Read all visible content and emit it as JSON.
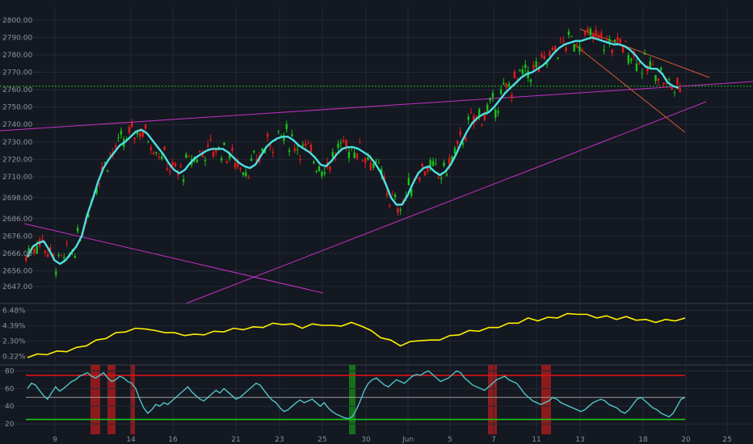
{
  "chart_data": [
    {
      "type": "candlestick",
      "y_ticks": [
        "2800.00",
        "2790.00",
        "2780.00",
        "2770.00",
        "2760.00",
        "2750.00",
        "2740.00",
        "2730.00",
        "2720.00",
        "2710.00",
        "2698.00",
        "2686.00",
        "2676.00",
        "2666.00",
        "2656.00",
        "2647.00"
      ],
      "ylim": [
        2640,
        2805
      ],
      "reference_line": 2762,
      "series": [
        {
          "values": [
            2664,
            2670,
            2672,
            2673,
            2668,
            2662,
            2660,
            2662,
            2666,
            2670,
            2676,
            2688,
            2697,
            2707,
            2715,
            2720,
            2724,
            2728,
            2730,
            2733,
            2736,
            2737,
            2735,
            2731,
            2727,
            2723,
            2718,
            2714,
            2712,
            2714,
            2718,
            2721,
            2723,
            2725,
            2726,
            2726,
            2726,
            2724,
            2721,
            2718,
            2716,
            2715,
            2717,
            2722,
            2727,
            2730,
            2732,
            2733,
            2733,
            2731,
            2728,
            2726,
            2724,
            2721,
            2717,
            2716,
            2719,
            2723,
            2726,
            2727,
            2727,
            2726,
            2724,
            2722,
            2718,
            2713,
            2706,
            2698,
            2694,
            2694,
            2699,
            2706,
            2712,
            2715,
            2716,
            2713,
            2711,
            2713,
            2717,
            2723,
            2730,
            2736,
            2741,
            2744,
            2746,
            2747,
            2750,
            2754,
            2758,
            2761,
            2764,
            2767,
            2769,
            2770,
            2772,
            2774,
            2777,
            2781,
            2784,
            2786,
            2787,
            2788,
            2788,
            2789,
            2790,
            2789,
            2788,
            2787,
            2786,
            2786,
            2785,
            2783,
            2780,
            2776,
            2773,
            2772,
            2772,
            2769,
            2764,
            2762,
            2761
          ]
        },
        {
          "name": "pivot_a",
          "values": [
            2738,
            2746
          ],
          "x_days": [
            0,
            31
          ]
        },
        {
          "name": "pivot_b",
          "values": [
            2678,
            2652
          ],
          "x_days": [
            0,
            13
          ]
        }
      ]
    },
    {
      "type": "line",
      "y_ticks": [
        "6.48%",
        "4.39%",
        "2.30%",
        "0.22%"
      ],
      "ylim": [
        -0.5,
        7.2
      ],
      "series": [
        {
          "values": [
            0.2,
            0.4,
            0.6,
            0.8,
            1.0,
            1.3,
            1.8,
            2.3,
            2.8,
            3.3,
            3.7,
            3.9,
            4.1,
            3.6,
            3.6,
            3.3,
            3.2,
            3.1,
            3.3,
            3.5,
            3.7,
            3.9,
            4.0,
            4.1,
            4.3,
            4.6,
            4.7,
            4.5,
            4.2,
            4.5,
            4.6,
            4.3,
            4.5,
            4.7,
            4.5,
            3.6,
            2.9,
            2.3,
            1.8,
            2.1,
            2.5,
            2.3,
            2.6,
            2.9,
            3.3,
            3.6,
            3.8,
            4.0,
            4.3,
            4.6,
            4.9,
            5.3,
            5.2,
            5.4,
            5.6,
            5.9,
            6.1,
            5.8,
            5.6,
            5.6,
            5.4,
            5.5,
            5.3,
            5.1,
            5.0,
            5.1,
            5.2,
            5.3
          ]
        }
      ]
    },
    {
      "type": "line",
      "y_ticks": [
        "80",
        "60",
        "40",
        "20"
      ],
      "ylim": [
        10,
        85
      ],
      "thresholds": [
        75,
        50,
        25
      ],
      "series": [
        {
          "values": [
            60,
            66,
            64,
            58,
            52,
            48,
            55,
            62,
            57,
            60,
            64,
            68,
            70,
            74,
            76,
            78,
            74,
            72,
            75,
            78,
            72,
            68,
            70,
            74,
            72,
            68,
            66,
            60,
            48,
            38,
            32,
            36,
            42,
            40,
            44,
            42,
            46,
            50,
            54,
            58,
            62,
            56,
            52,
            48,
            46,
            50,
            54,
            58,
            55,
            60,
            56,
            52,
            48,
            50,
            54,
            58,
            62,
            66,
            64,
            58,
            52,
            47,
            44,
            38,
            34,
            36,
            40,
            44,
            47,
            44,
            46,
            48,
            44,
            40,
            44,
            38,
            34,
            31,
            29,
            27,
            26,
            28,
            36,
            46,
            58,
            66,
            70,
            72,
            68,
            64,
            62,
            66,
            70,
            68,
            66,
            70,
            74,
            76,
            75,
            78,
            80,
            76,
            72,
            68,
            70,
            72,
            76,
            80,
            78,
            72,
            68,
            64,
            62,
            60,
            58,
            62,
            66,
            70,
            72,
            74,
            70,
            68,
            66,
            60,
            54,
            50,
            46,
            44,
            42,
            44,
            46,
            50,
            48,
            44,
            42,
            40,
            38,
            36,
            34,
            36,
            40,
            44,
            46,
            48,
            46,
            42,
            40,
            38,
            34,
            32,
            36,
            42,
            48,
            50,
            46,
            42,
            38,
            36,
            32,
            30,
            28,
            32,
            40,
            48,
            50
          ]
        }
      ]
    }
  ],
  "x_ticks": [
    "9",
    "14",
    "16",
    "21",
    "23",
    "25",
    "30",
    "Jun",
    "5",
    "7",
    "11",
    "13",
    "18",
    "20",
    "25"
  ],
  "colors": {
    "up": "#19c219",
    "down": "#e01b1b",
    "ma": "#4ee0e0",
    "wedge": "#c431c4",
    "channel": "#d45a37",
    "reference": "#19c219",
    "volatility": "#ffee00",
    "osc": "#4ec5c5",
    "overbought": "#d81515",
    "midline": "#9a9a9a",
    "oversold": "#19c219",
    "extreme_band_red": "#b51c1c",
    "extreme_band_green": "#1a8c1a"
  }
}
